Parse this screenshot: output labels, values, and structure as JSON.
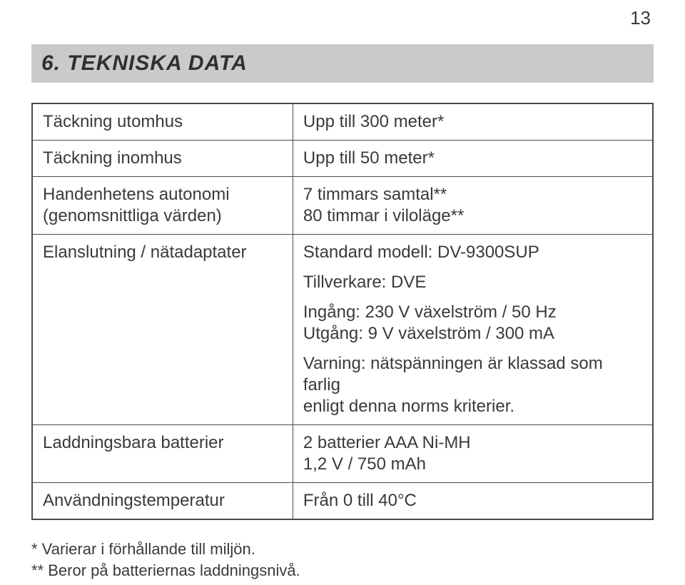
{
  "page_number": "13",
  "section_heading": "6. TEKNISKA DATA",
  "table": {
    "rows": [
      {
        "label": "Täckning utomhus",
        "value": "Upp till 300 meter*"
      },
      {
        "label": "Täckning inomhus",
        "value": "Upp till 50 meter*"
      },
      {
        "label_line1": "Handenhetens autonomi",
        "label_line2": "(genomsnittliga värden)",
        "value_line1": "7 timmars samtal**",
        "value_line2": "80 timmar i viloläge**"
      },
      {
        "label": "Elanslutning / nätadaptater",
        "value_p1": "Standard modell: DV-9300SUP",
        "value_p2": "Tillverkare: DVE",
        "value_p3_l1": "Ingång: 230 V växelström / 50 Hz",
        "value_p3_l2": "Utgång: 9 V växelström / 300 mA",
        "value_p4_l1": "Varning: nätspänningen är klassad som farlig",
        "value_p4_l2": "enligt denna norms kriterier."
      },
      {
        "label": "Laddningsbara batterier",
        "value_line1": "2 batterier AAA Ni-MH",
        "value_line2": "1,2 V / 750 mAh"
      },
      {
        "label": "Användningstemperatur",
        "value": "Från 0 till 40°C"
      }
    ]
  },
  "footnote1": "* Varierar i förhållande till miljön.",
  "footnote2": "** Beror på batteriernas laddningsnivå.",
  "colors": {
    "heading_bg": "#c9cacb",
    "text": "#3a3a3a",
    "border": "#4a4a4a",
    "background": "#ffffff"
  },
  "typography": {
    "heading_fontsize_pt": 22,
    "body_fontsize_pt": 18,
    "footnote_fontsize_pt": 16,
    "pagenum_fontsize_pt": 19,
    "font_family": "Arial"
  },
  "layout": {
    "col1_width_pct": 42,
    "col2_width_pct": 58
  }
}
